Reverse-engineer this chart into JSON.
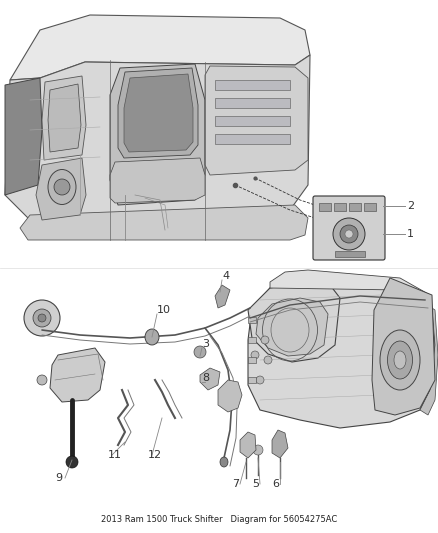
{
  "title": "2013 Ram 1500 Truck Shifter   Diagram for 56054275AC",
  "background_color": "#ffffff",
  "fig_width": 4.38,
  "fig_height": 5.33,
  "dpi": 100,
  "line_color": "#888888",
  "text_color": "#333333",
  "dark_line": "#444444",
  "mid_line": "#666666",
  "light_line": "#999999"
}
